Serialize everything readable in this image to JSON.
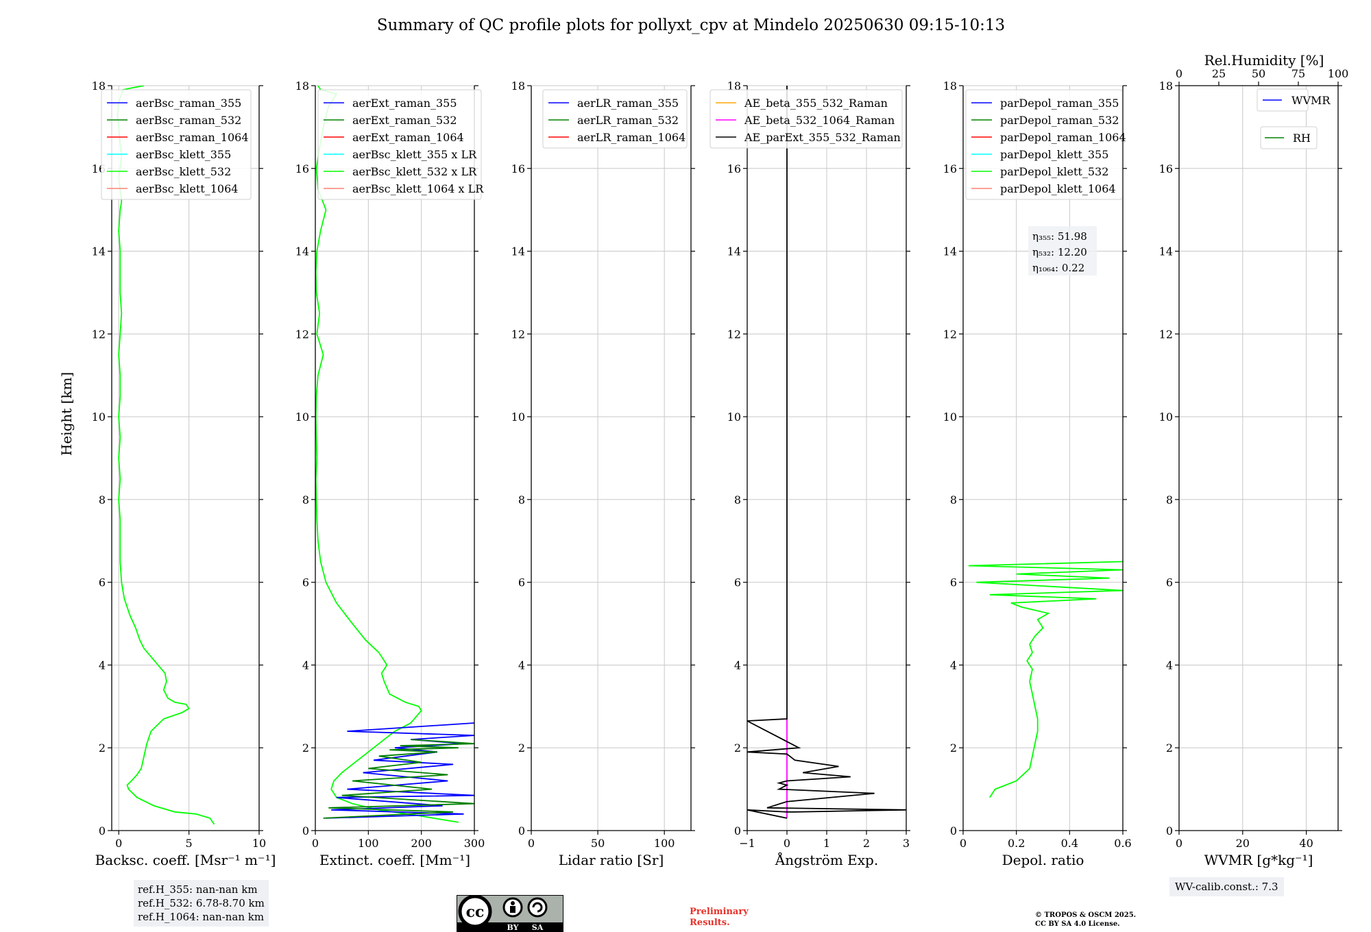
{
  "title": "Summary of QC profile plots for pollyxt_cpv at Mindelo 20250630 09:15-10:13",
  "y_axis_label": "Height [km]",
  "ref_heights": [
    "ref.H_355: nan-nan km",
    "ref.H_532: 6.78-8.70 km",
    "ref.H_1064: nan-nan km"
  ],
  "wv_calib": "WV-calib.const.: 7.3",
  "preliminary": [
    "Preliminary",
    "Results."
  ],
  "copyright": [
    "© TROPOS & OSCM 2025.",
    "CC BY SA 4.0 License."
  ],
  "license_badge": {
    "cc": "cc",
    "by": "BY",
    "sa": "SA"
  },
  "colors": {
    "blue": "#0000ff",
    "green": "#008000",
    "red": "#ff0000",
    "cyan": "#00ffff",
    "lime": "#00ff00",
    "salmon": "#fa8072",
    "orange": "#ffa500",
    "magenta": "#ff00ff",
    "black": "#000000",
    "prelim": "#e8312a"
  },
  "chart_data": [
    {
      "type": "line",
      "xlabel": "Backsc. coeff. [Msr⁻¹ m⁻¹]",
      "xlim": [
        -0.5,
        10
      ],
      "xticks": [
        0,
        5,
        10
      ],
      "ylim": [
        0,
        18
      ],
      "yticks": [
        0,
        2,
        4,
        6,
        8,
        10,
        12,
        14,
        16,
        18
      ],
      "grid": true,
      "legend": {
        "placement": "top-right",
        "entries": [
          {
            "label": "aerBsc_raman_355",
            "color": "#0000ff"
          },
          {
            "label": "aerBsc_raman_532",
            "color": "#008000"
          },
          {
            "label": "aerBsc_raman_1064",
            "color": "#ff0000"
          },
          {
            "label": "aerBsc_klett_355",
            "color": "#00ffff"
          },
          {
            "label": "aerBsc_klett_532",
            "color": "#00ff00"
          },
          {
            "label": "aerBsc_klett_1064",
            "color": "#fa8072"
          }
        ]
      },
      "series": [
        {
          "name": "aerBsc_klett_532",
          "color": "#00ff00",
          "x": [
            6.8,
            6.5,
            5.5,
            4,
            2.5,
            1.3,
            0.7,
            0.6,
            0.9,
            1.3,
            1.6,
            1.8,
            2.0,
            2.3,
            3.2,
            4.5,
            5.0,
            4.8,
            4.0,
            3.5,
            3.2,
            3.4,
            3.3,
            2.8,
            1.8,
            1.5,
            1.2,
            0.8,
            0.4,
            0.2,
            0.1,
            0.1,
            0.1,
            0.0,
            0.1,
            0.0,
            0.1,
            0.0,
            0.1,
            0.1,
            0.0,
            0.1,
            0.2,
            0.1,
            0.1,
            0.1,
            0.0,
            0.1,
            0.2,
            0.1,
            0.0,
            0.1,
            0.2,
            0.1,
            0.0,
            -0.1,
            0.0,
            0.2,
            0.3,
            1.0,
            1.8
          ],
          "y": [
            0.15,
            0.3,
            0.4,
            0.45,
            0.6,
            0.8,
            1.0,
            1.1,
            1.2,
            1.35,
            1.5,
            1.8,
            2.1,
            2.4,
            2.7,
            2.85,
            2.95,
            3.05,
            3.1,
            3.2,
            3.4,
            3.6,
            3.8,
            4.0,
            4.4,
            4.6,
            4.9,
            5.2,
            5.6,
            6.0,
            6.5,
            7.0,
            7.5,
            8.0,
            8.5,
            9.0,
            9.5,
            10.0,
            10.5,
            11.0,
            11.5,
            12.0,
            12.5,
            13.0,
            13.5,
            14.0,
            14.5,
            15.0,
            15.2,
            15.5,
            15.8,
            16.0,
            16.3,
            16.6,
            17.0,
            17.3,
            17.6,
            17.8,
            17.9,
            17.95,
            18.0
          ]
        }
      ]
    },
    {
      "type": "line",
      "xlabel": "Extinct. coeff. [Mm⁻¹]",
      "xlim": [
        0,
        300
      ],
      "xticks": [
        0,
        100,
        200,
        300
      ],
      "ylim": [
        0,
        18
      ],
      "yticks": [
        0,
        2,
        4,
        6,
        8,
        10,
        12,
        14,
        16,
        18
      ],
      "grid": true,
      "legend": {
        "placement": "top-left",
        "entries": [
          {
            "label": "aerExt_raman_355",
            "color": "#0000ff"
          },
          {
            "label": "aerExt_raman_532",
            "color": "#008000"
          },
          {
            "label": "aerExt_raman_1064",
            "color": "#ff0000"
          },
          {
            "label": "aerBsc_klett_355 x LR",
            "color": "#00ffff"
          },
          {
            "label": "aerBsc_klett_532 x LR",
            "color": "#00ff00"
          },
          {
            "label": "aerBsc_klett_1064 x LR",
            "color": "#fa8072"
          }
        ]
      },
      "series": [
        {
          "name": "aerBsc_klett_532 x LR",
          "color": "#00ff00",
          "x": [
            270,
            200,
            120,
            70,
            40,
            30,
            35,
            50,
            70,
            90,
            110,
            130,
            150,
            180,
            200,
            195,
            170,
            140,
            130,
            125,
            135,
            120,
            95,
            70,
            40,
            20,
            10,
            5,
            3,
            2,
            1,
            3,
            2,
            1,
            2,
            5,
            15,
            3,
            8,
            2,
            1,
            3,
            10,
            20,
            5,
            2,
            8,
            15,
            25,
            40,
            10,
            5
          ],
          "y": [
            0.2,
            0.35,
            0.5,
            0.65,
            0.8,
            1.0,
            1.2,
            1.4,
            1.6,
            1.8,
            2.0,
            2.2,
            2.4,
            2.6,
            2.9,
            3.0,
            3.1,
            3.3,
            3.6,
            3.8,
            4.0,
            4.3,
            4.6,
            5.0,
            5.5,
            6.0,
            6.5,
            7.0,
            7.5,
            8.0,
            8.5,
            9.0,
            9.5,
            10.0,
            10.5,
            11.0,
            11.5,
            12.0,
            12.5,
            13.0,
            13.5,
            14.0,
            14.5,
            15.0,
            15.5,
            16.0,
            16.5,
            17.0,
            17.5,
            17.8,
            17.9,
            18.0
          ]
        },
        {
          "name": "aerExt_raman_355",
          "color": "#0000ff",
          "x": [
            20,
            280,
            30,
            240,
            40,
            300,
            60,
            250,
            90,
            260,
            110,
            230,
            150,
            280,
            180,
            300,
            60,
            300
          ],
          "y": [
            0.3,
            0.4,
            0.5,
            0.6,
            0.8,
            0.85,
            1.0,
            1.2,
            1.4,
            1.6,
            1.7,
            1.9,
            2.0,
            2.1,
            2.2,
            2.3,
            2.4,
            2.6
          ]
        },
        {
          "name": "aerExt_raman_532",
          "color": "#008000",
          "x": [
            15,
            260,
            25,
            300,
            50,
            220,
            70,
            250,
            100,
            200,
            120,
            230,
            140,
            270,
            160,
            300,
            180
          ],
          "y": [
            0.3,
            0.45,
            0.55,
            0.65,
            0.85,
            1.0,
            1.2,
            1.35,
            1.5,
            1.65,
            1.8,
            1.9,
            1.95,
            2.0,
            2.05,
            2.1,
            2.2
          ]
        }
      ]
    },
    {
      "type": "line",
      "xlabel": "Lidar ratio [Sr]",
      "xlim": [
        0,
        120
      ],
      "xticks": [
        0,
        50,
        100
      ],
      "ylim": [
        0,
        18
      ],
      "yticks": [
        0,
        2,
        4,
        6,
        8,
        10,
        12,
        14,
        16,
        18
      ],
      "grid": true,
      "legend": {
        "placement": "top-right",
        "entries": [
          {
            "label": "aerLR_raman_355",
            "color": "#0000ff"
          },
          {
            "label": "aerLR_raman_532",
            "color": "#008000"
          },
          {
            "label": "aerLR_raman_1064",
            "color": "#ff0000"
          }
        ]
      },
      "series": []
    },
    {
      "type": "line",
      "xlabel": "Ångström Exp.",
      "xlim": [
        -1,
        3
      ],
      "xticks": [
        -1,
        0,
        1,
        2,
        3
      ],
      "ylim": [
        0,
        18
      ],
      "yticks": [
        0,
        2,
        4,
        6,
        8,
        10,
        12,
        14,
        16,
        18
      ],
      "grid": true,
      "legend": {
        "placement": "top-right",
        "entries": [
          {
            "label": "AE_beta_355_532_Raman",
            "color": "#ffa500"
          },
          {
            "label": "AE_beta_532_1064_Raman",
            "color": "#ff00ff"
          },
          {
            "label": "AE_parExt_355_532_Raman",
            "color": "#000000"
          }
        ]
      },
      "series": [
        {
          "name": "AE_beta_532_1064_Raman",
          "color": "#ff00ff",
          "x": [
            0,
            0
          ],
          "y": [
            0.3,
            2.7
          ]
        },
        {
          "name": "AE_parExt_355_532_Raman",
          "color": "#000000",
          "x": [
            0,
            -1,
            0,
            0.2,
            3,
            -0.5,
            0,
            2.2,
            -0.2,
            0,
            -0.2,
            0,
            1.6,
            0.4,
            1.3,
            0.2,
            0,
            -1,
            0.3,
            -1,
            0,
            0
          ],
          "y": [
            0.3,
            0.5,
            0.45,
            0.45,
            0.5,
            0.55,
            0.7,
            0.9,
            1.0,
            1.1,
            1.15,
            1.2,
            1.3,
            1.4,
            1.55,
            1.7,
            1.85,
            1.9,
            2.0,
            2.65,
            2.7,
            18
          ]
        }
      ]
    },
    {
      "type": "line",
      "xlabel": "Depol. ratio",
      "xlim": [
        0,
        0.6
      ],
      "xticks": [
        0.0,
        0.2,
        0.4,
        0.6
      ],
      "ylim": [
        0,
        18
      ],
      "yticks": [
        0,
        2,
        4,
        6,
        8,
        10,
        12,
        14,
        16,
        18
      ],
      "grid": true,
      "legend": {
        "placement": "top-left",
        "entries": [
          {
            "label": "parDepol_raman_355",
            "color": "#0000ff"
          },
          {
            "label": "parDepol_raman_532",
            "color": "#008000"
          },
          {
            "label": "parDepol_raman_1064",
            "color": "#ff0000"
          },
          {
            "label": "parDepol_klett_355",
            "color": "#00ffff"
          },
          {
            "label": "parDepol_klett_532",
            "color": "#00ff00"
          },
          {
            "label": "parDepol_klett_1064",
            "color": "#fa8072"
          }
        ]
      },
      "annotations": [
        "η₃₅₅: 51.98",
        "η₅₃₂: 12.20",
        "η₁₀₆₄: 0.22"
      ],
      "series": [
        {
          "name": "parDepol_klett_532",
          "color": "#00ff00",
          "x": [
            0.1,
            0.12,
            0.2,
            0.25,
            0.26,
            0.27,
            0.28,
            0.28,
            0.27,
            0.26,
            0.25,
            0.26,
            0.24,
            0.26,
            0.25,
            0.27,
            0.3,
            0.28,
            0.32,
            0.22,
            0.18,
            0.5,
            0.1,
            0.6,
            0.05,
            0.55,
            0.2,
            0.6,
            0.02,
            0.6
          ],
          "y": [
            0.8,
            1.0,
            1.2,
            1.5,
            1.8,
            2.1,
            2.4,
            2.7,
            3.0,
            3.3,
            3.6,
            3.9,
            4.1,
            4.3,
            4.5,
            4.7,
            4.9,
            5.1,
            5.25,
            5.4,
            5.5,
            5.6,
            5.7,
            5.8,
            6.0,
            6.1,
            6.2,
            6.3,
            6.4,
            6.5
          ]
        }
      ]
    },
    {
      "type": "line",
      "xlabel": "WVMR [g*kg⁻¹]",
      "xlim": [
        0,
        50
      ],
      "xticks": [
        0,
        20,
        40
      ],
      "x2label": "Rel.Humidity [%]",
      "x2lim": [
        0,
        100
      ],
      "x2ticks": [
        0,
        25,
        50,
        75,
        100
      ],
      "ylim": [
        0,
        18
      ],
      "yticks": [
        0,
        2,
        4,
        6,
        8,
        10,
        12,
        14,
        16,
        18
      ],
      "grid": true,
      "legend": {
        "placement": "top-right",
        "entries": [
          {
            "label": "WVMR",
            "color": "#0000ff"
          },
          {
            "label": "RH",
            "color": "#008000"
          }
        ]
      },
      "series": []
    }
  ]
}
